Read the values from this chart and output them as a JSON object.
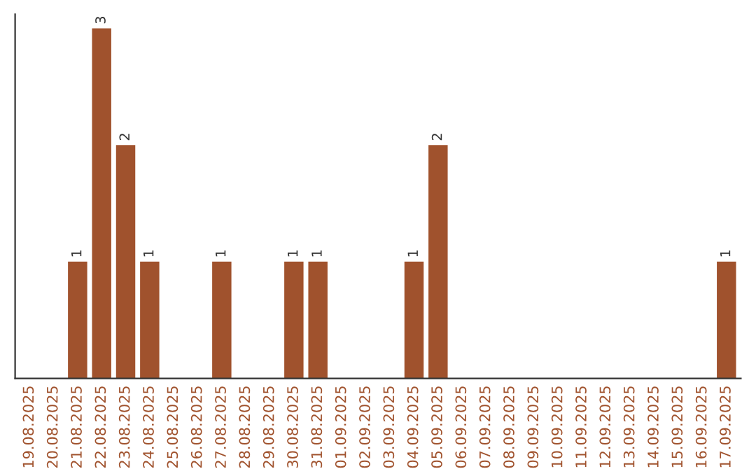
{
  "chart_data": {
    "type": "bar",
    "categories": [
      "19.08.2025",
      "20.08.2025",
      "21.08.2025",
      "22.08.2025",
      "23.08.2025",
      "24.08.2025",
      "25.08.2025",
      "26.08.2025",
      "27.08.2025",
      "28.08.2025",
      "29.08.2025",
      "30.08.2025",
      "31.08.2025",
      "01.09.2025",
      "02.09.2025",
      "03.09.2025",
      "04.09.2025",
      "05.09.2025",
      "06.09.2025",
      "07.09.2025",
      "08.09.2025",
      "09.09.2025",
      "10.09.2025",
      "11.09.2025",
      "12.09.2025",
      "13.09.2025",
      "14.09.2025",
      "15.09.2025",
      "16.09.2025",
      "17.09.2025"
    ],
    "values": [
      0,
      0,
      1,
      3,
      2,
      1,
      0,
      0,
      1,
      0,
      0,
      1,
      1,
      0,
      0,
      0,
      1,
      2,
      0,
      0,
      0,
      0,
      0,
      0,
      0,
      0,
      0,
      0,
      0,
      1
    ],
    "value_labels": [
      null,
      null,
      "1",
      "3",
      "2",
      "1",
      null,
      null,
      "1",
      null,
      null,
      "1",
      "1",
      null,
      null,
      null,
      "1",
      "2",
      null,
      null,
      null,
      null,
      null,
      null,
      null,
      null,
      null,
      null,
      null,
      "1"
    ],
    "color": "#a0522d",
    "tick_labels": "x",
    "grid": false
  }
}
